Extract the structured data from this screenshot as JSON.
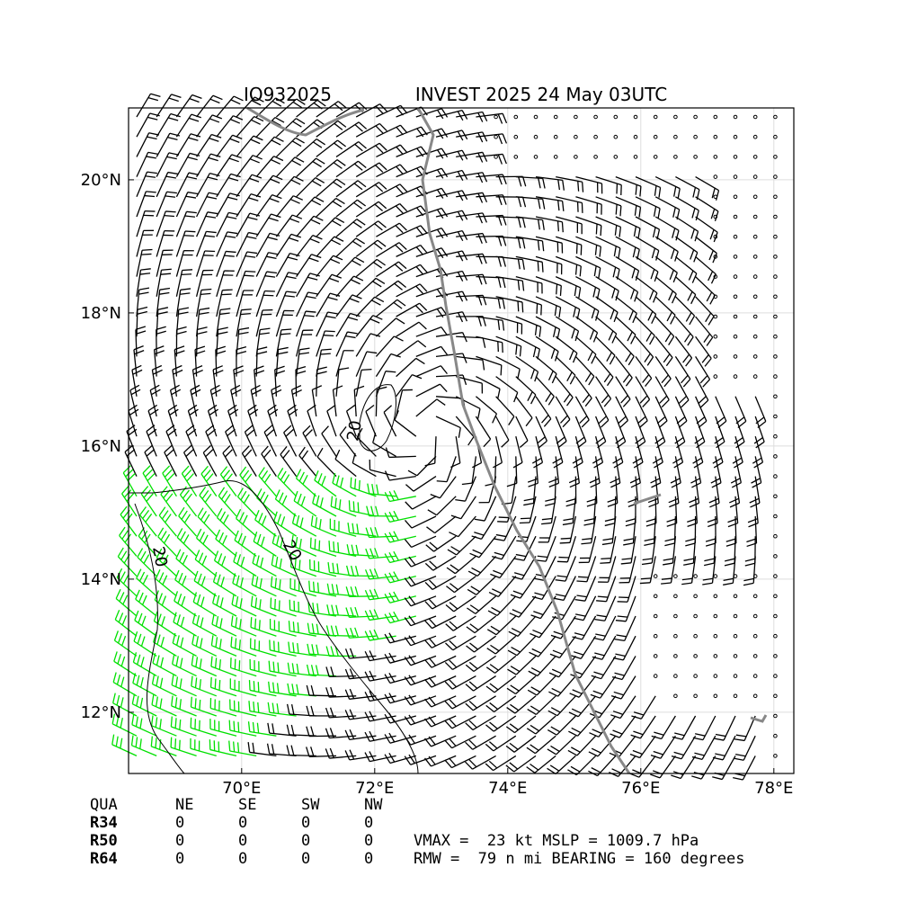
{
  "chart_data": {
    "type": "barbs",
    "title_left": "IO932025",
    "title_right": "INVEST 2025 24 May 03UTC",
    "xlim": [
      68.3,
      78.3
    ],
    "ylim": [
      11.08,
      21.08
    ],
    "xticks": [
      {
        "value": 70,
        "label": "70°E"
      },
      {
        "value": 72,
        "label": "72°E"
      },
      {
        "value": 74,
        "label": "74°E"
      },
      {
        "value": 76,
        "label": "76°E"
      },
      {
        "value": 78,
        "label": "78°E"
      }
    ],
    "yticks": [
      {
        "value": 12,
        "label": "12°N"
      },
      {
        "value": 14,
        "label": "14°N"
      },
      {
        "value": 16,
        "label": "16°N"
      },
      {
        "value": 18,
        "label": "18°N"
      },
      {
        "value": 20,
        "label": "20°N"
      }
    ],
    "grid": true,
    "contour_labels": [
      "20",
      "20",
      "20"
    ],
    "table": {
      "header": [
        "QUA",
        "NE",
        "SE",
        "SW",
        "NW"
      ],
      "rows": [
        [
          "R34",
          "0",
          "0",
          "0",
          "0"
        ],
        [
          "R50",
          "0",
          "0",
          "0",
          "0"
        ],
        [
          "R64",
          "0",
          "0",
          "0",
          "0"
        ]
      ]
    },
    "info": [
      "VMAX =  23 kt MSLP = 1009.7 hPa",
      "RMW =  79 n mi BEARING = 160 degrees"
    ]
  }
}
